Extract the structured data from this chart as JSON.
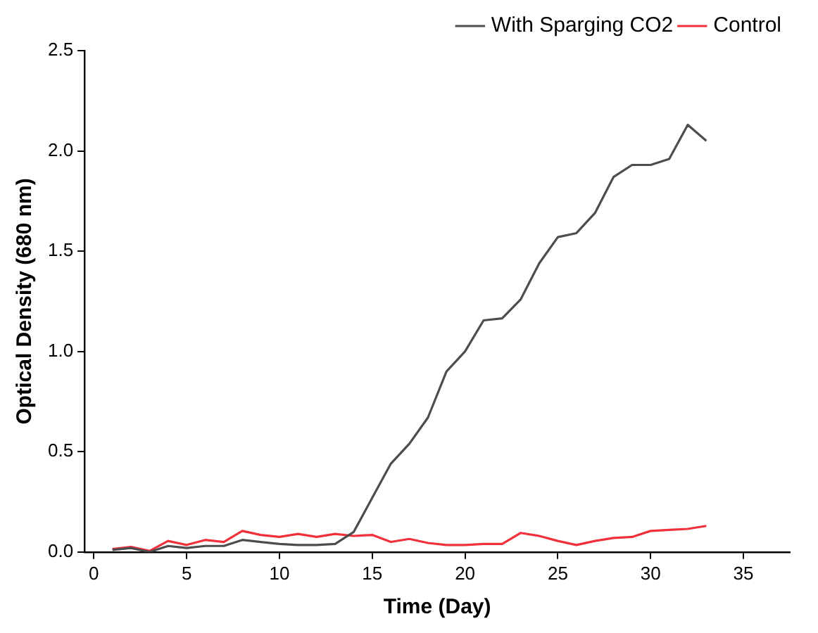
{
  "chart_data": {
    "type": "line",
    "xlabel": "Time (Day)",
    "ylabel": "Optical Density (680 nm)",
    "x": [
      1,
      2,
      3,
      4,
      5,
      6,
      7,
      8,
      9,
      10,
      11,
      12,
      13,
      14,
      15,
      16,
      17,
      18,
      19,
      20,
      21,
      22,
      23,
      24,
      25,
      26,
      27,
      28,
      29,
      30,
      31,
      32,
      33
    ],
    "series": [
      {
        "name": "With Sparging CO2",
        "color": "#4d4d4d",
        "values": [
          0.01,
          0.02,
          0.0,
          0.03,
          0.02,
          0.03,
          0.03,
          0.06,
          0.05,
          0.04,
          0.035,
          0.035,
          0.04,
          0.1,
          0.27,
          0.44,
          0.54,
          0.67,
          0.9,
          1.0,
          1.155,
          1.165,
          1.26,
          1.44,
          1.57,
          1.59,
          1.69,
          1.87,
          1.93,
          1.93,
          1.96,
          2.13,
          2.05
        ]
      },
      {
        "name": "Control",
        "color": "#f0303a",
        "values": [
          0.015,
          0.025,
          0.005,
          0.055,
          0.035,
          0.06,
          0.05,
          0.105,
          0.085,
          0.075,
          0.09,
          0.075,
          0.09,
          0.08,
          0.085,
          0.05,
          0.065,
          0.045,
          0.035,
          0.035,
          0.04,
          0.04,
          0.095,
          0.08,
          0.055,
          0.035,
          0.055,
          0.07,
          0.075,
          0.105,
          0.11,
          0.115,
          0.13
        ]
      }
    ],
    "xlim": [
      -0.5,
      37.5
    ],
    "xticks": [
      0,
      5,
      10,
      15,
      20,
      25,
      30,
      35
    ],
    "ylim": [
      0,
      2.5
    ],
    "yticks": [
      {
        "value": 0,
        "label": "0.0"
      },
      {
        "value": 0.5,
        "label": "0.5"
      },
      {
        "value": 1,
        "label": "1.0"
      },
      {
        "value": 1.5,
        "label": "1.5"
      },
      {
        "value": 2,
        "label": "2.0"
      },
      {
        "value": 2.5,
        "label": "2.5"
      }
    ],
    "grid": false,
    "legend": "top right",
    "marker": "none",
    "line_style": "solid"
  }
}
